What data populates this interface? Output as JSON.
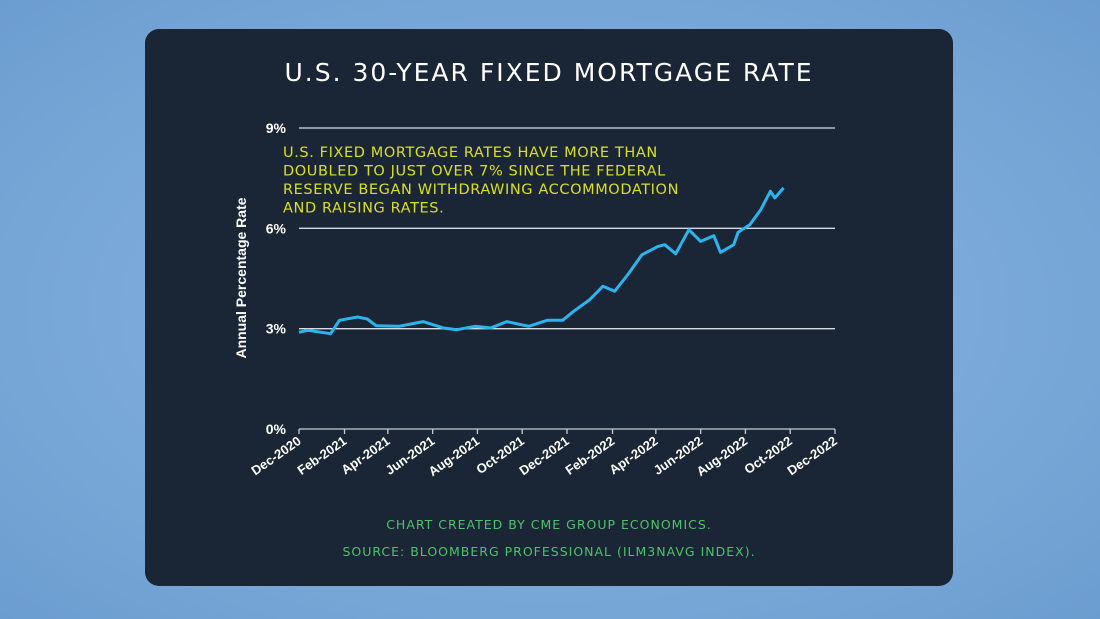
{
  "chart_data": {
    "type": "line",
    "title": "U.S. 30-YEAR FIXED MORTGAGE RATE",
    "ylabel": "Annual Percentage Rate",
    "xlabel": "",
    "ylim": [
      0,
      9
    ],
    "yticks": [
      "0%",
      "3%",
      "6%",
      "9%"
    ],
    "ytick_values": [
      0,
      3,
      6,
      9
    ],
    "xlim": [
      "2020-12-01",
      "2022-12-01"
    ],
    "xtick_labels": [
      "Dec-2020",
      "Feb-2021",
      "Apr-2021",
      "Jun-2021",
      "Aug-2021",
      "Oct-2021",
      "Dec-2021",
      "Feb-2022",
      "Apr-2022",
      "Jun-2022",
      "Aug-2022",
      "Oct-2022",
      "Dec-2022"
    ],
    "xtick_dates": [
      "2020-12-01",
      "2021-02-01",
      "2021-04-01",
      "2021-06-01",
      "2021-08-01",
      "2021-10-01",
      "2021-12-01",
      "2022-02-01",
      "2022-04-01",
      "2022-06-01",
      "2022-08-01",
      "2022-10-01",
      "2022-12-01"
    ],
    "grid": "horizontal",
    "line_color": "#29b6ef",
    "annotation": [
      "U.S. FIXED MORTGAGE RATES HAVE MORE THAN",
      "DOUBLED TO JUST OVER 7% SINCE THE FEDERAL",
      "RESERVE BEGAN WITHDRAWING ACCOMMODATION",
      "AND RAISING RATES."
    ],
    "annotation_color": "#d9e021",
    "series": [
      {
        "x": [
          "2020-12-01",
          "2020-12-13",
          "2021-01-13",
          "2021-01-25",
          "2021-02-19",
          "2021-03-04",
          "2021-03-16",
          "2021-04-16",
          "2021-05-19",
          "2021-06-16",
          "2021-07-04",
          "2021-07-29",
          "2021-08-19",
          "2021-09-10",
          "2021-10-10",
          "2021-11-04",
          "2021-11-25",
          "2021-12-10",
          "2022-01-01",
          "2022-01-19",
          "2022-02-04",
          "2022-02-22",
          "2022-03-13",
          "2022-04-04",
          "2022-04-13",
          "2022-04-28",
          "2022-05-16",
          "2022-06-01",
          "2022-06-19",
          "2022-06-28",
          "2022-07-16",
          "2022-07-22",
          "2022-08-07",
          "2022-08-22",
          "2022-09-04",
          "2022-09-10",
          "2022-09-22"
        ],
        "y": [
          2.89,
          2.95,
          2.85,
          3.25,
          3.35,
          3.29,
          3.09,
          3.07,
          3.21,
          3.02,
          2.97,
          3.07,
          3.02,
          3.21,
          3.07,
          3.25,
          3.25,
          3.52,
          3.87,
          4.27,
          4.12,
          4.62,
          5.21,
          5.46,
          5.51,
          5.24,
          5.96,
          5.61,
          5.78,
          5.28,
          5.51,
          5.88,
          6.11,
          6.56,
          7.11,
          6.91,
          7.21
        ]
      }
    ]
  },
  "footer": {
    "credit": "CHART CREATED BY CME GROUP ECONOMICS.",
    "source": "SOURCE:  BLOOMBERG PROFESSIONAL (ILM3NAVG INDEX)."
  }
}
